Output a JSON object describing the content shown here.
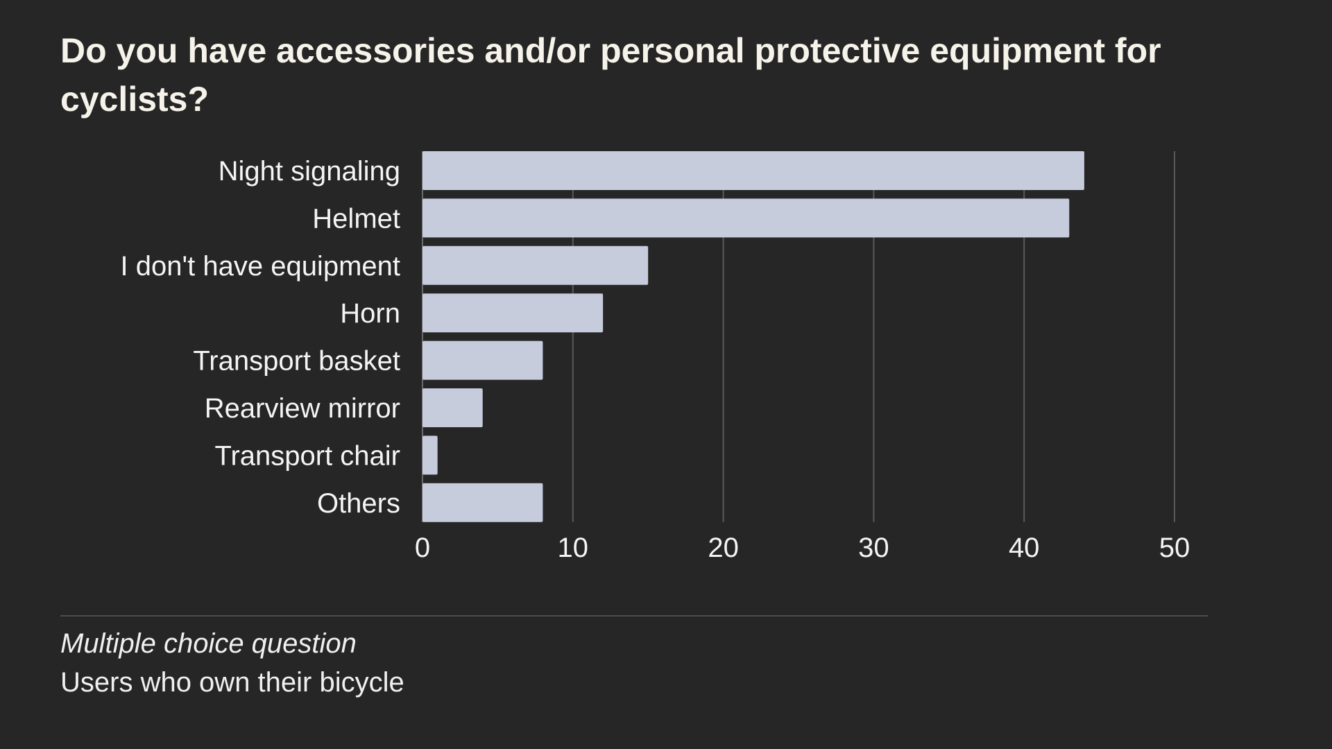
{
  "chart_data": {
    "type": "bar",
    "orientation": "horizontal",
    "title": "Do you have accessories and/or personal protective equipment for cyclists?",
    "categories": [
      "Night signaling",
      "Helmet",
      "I don't have equipment",
      "Horn",
      "Transport basket",
      "Rearview mirror",
      "Transport chair",
      "Others"
    ],
    "values": [
      44,
      43,
      15,
      12,
      8,
      4,
      1,
      8
    ],
    "xlim": [
      0,
      50
    ],
    "xticks": [
      0,
      10,
      20,
      30,
      40,
      50
    ],
    "grid": true,
    "bar_color": "#c7ccdd",
    "grid_color": "#5a5a5a",
    "text_color": "#f4f4f4"
  },
  "footer": {
    "note": "Multiple choice question",
    "population": "Users who own their bicycle"
  },
  "colors": {
    "background": "#262626",
    "title": "#f6f3ea",
    "rule": "#4d4d4d"
  }
}
